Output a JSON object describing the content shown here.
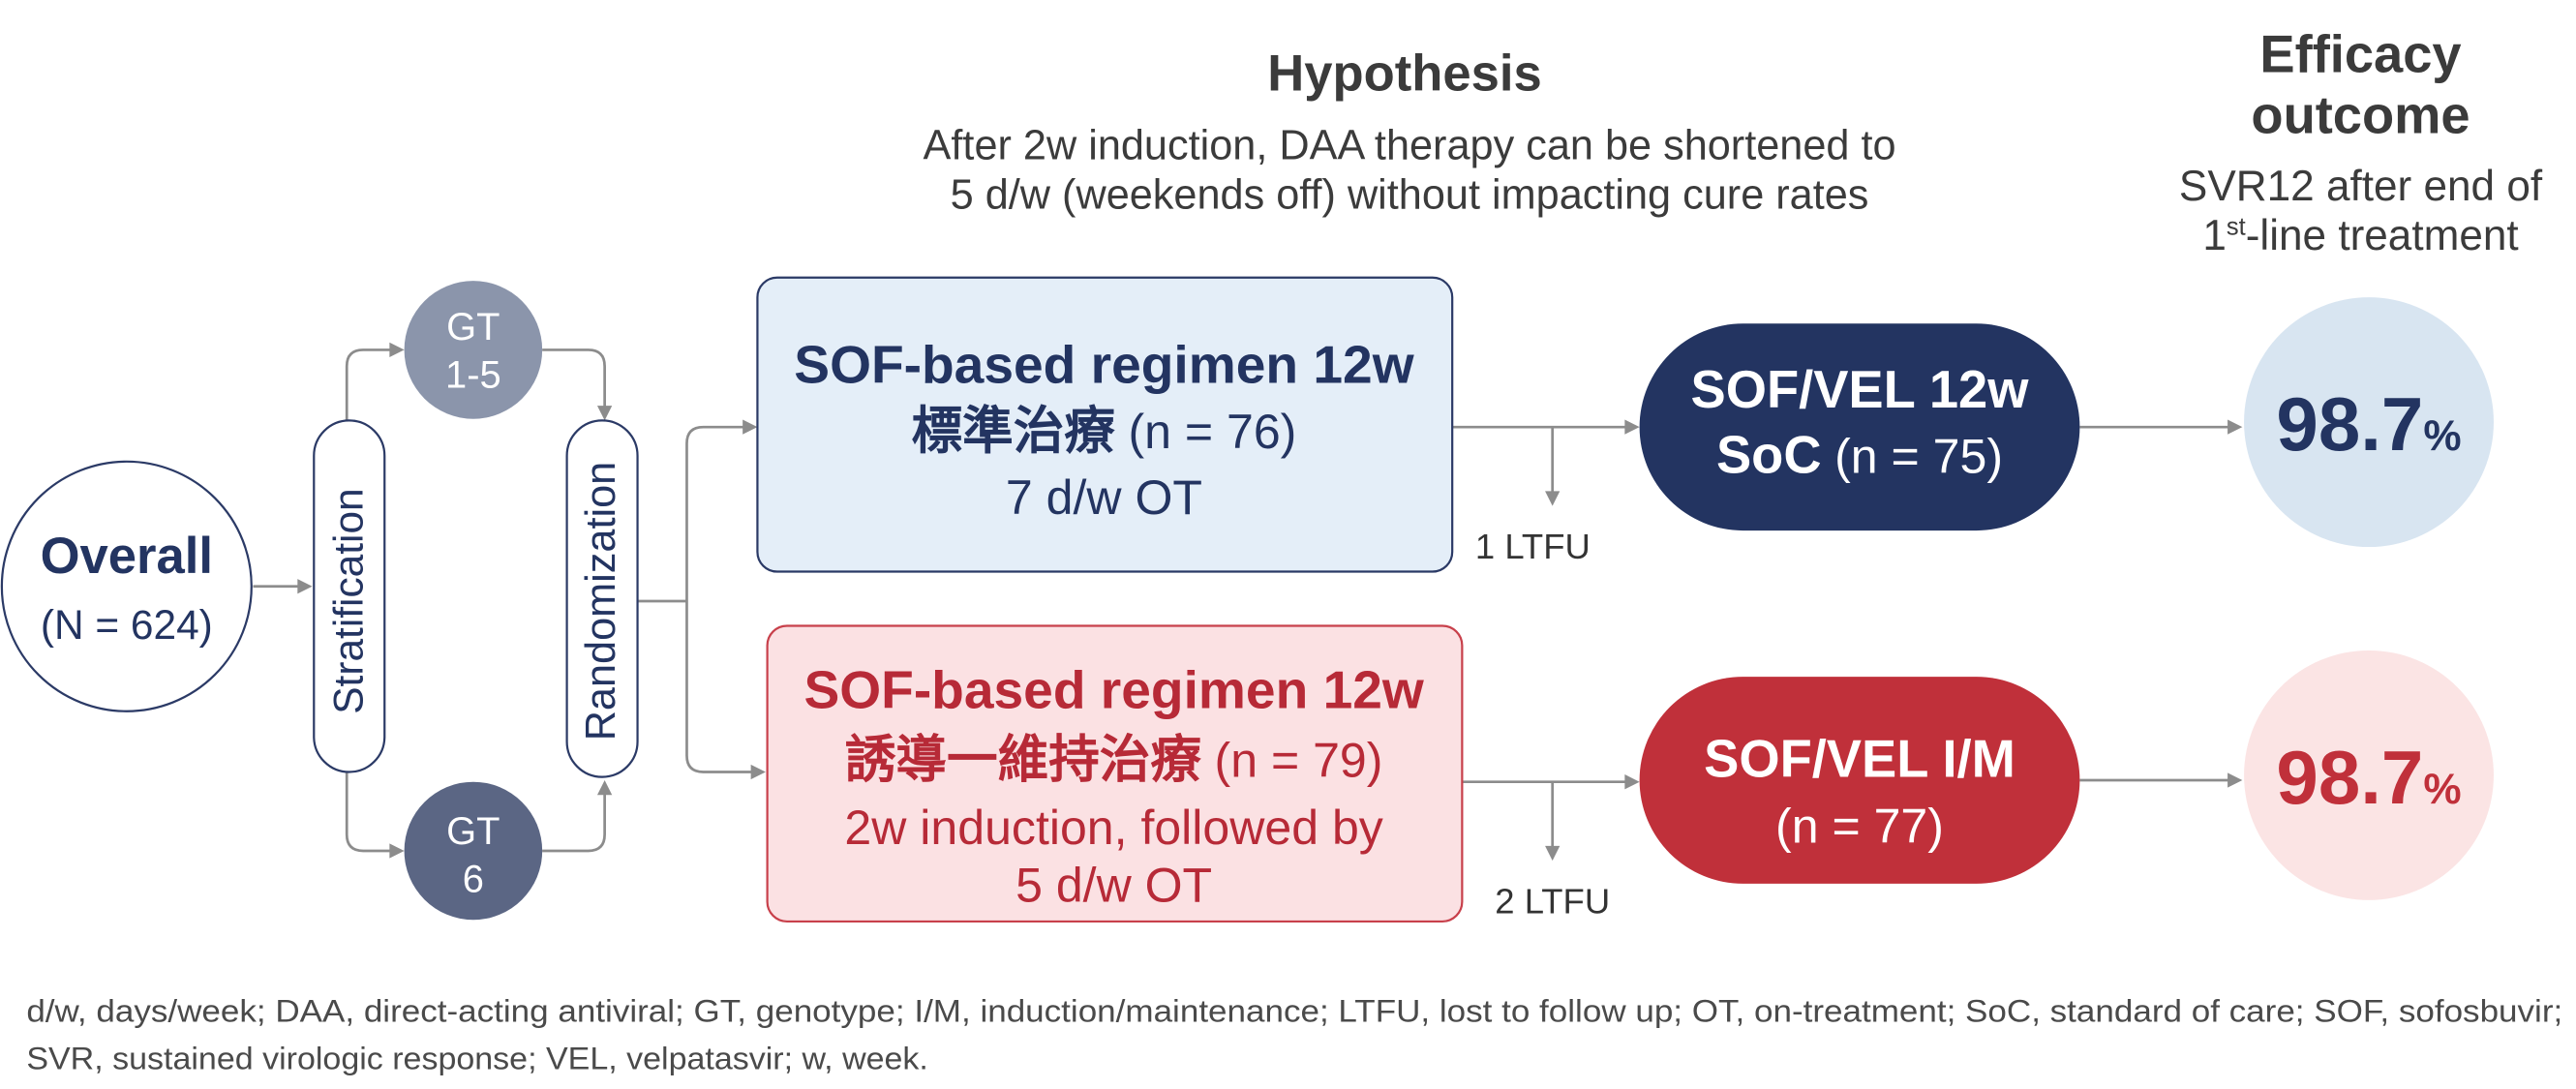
{
  "hypothesis": {
    "title": "Hypothesis",
    "lines": [
      "After 2w induction, DAA therapy can be shortened to",
      "5 d/w (weekends off) without impacting cure rates"
    ]
  },
  "efficacy_outcome": {
    "title": [
      "Efficacy",
      "outcome"
    ],
    "description_line1": "SVR12 after end of",
    "description_line2": {
      "ordinal": "1",
      "superscript": "st",
      "rest": "-line treatment"
    }
  },
  "overall": {
    "label": "Overall",
    "count": "(N = 624)"
  },
  "stratification": {
    "label": "Stratification"
  },
  "randomization": {
    "label": "Randomization"
  },
  "genotype_groups": [
    {
      "line1": "GT",
      "line2": "1-5",
      "color": "#8b95ab"
    },
    {
      "line1": "GT",
      "line2": "6",
      "color": "#5b6684"
    }
  ],
  "arms": [
    {
      "regimen": "SOF-based regimen 12w",
      "name_zh": "標準治療",
      "count": "(n = 76)",
      "schedule": [
        "7 d/w OT"
      ],
      "box_fill": "#e4eef8",
      "box_border": "#2b3a66",
      "lost_to_follow_up": "1 LTFU",
      "treatment": {
        "line1": "SOF/VEL 12w",
        "line2_bold": "SoC",
        "line2": "(n = 75)",
        "color": "#233461"
      },
      "outcome": {
        "value": "98.7",
        "unit": "%",
        "fill": "#d8e5f1"
      }
    },
    {
      "regimen": "SOF-based regimen 12w",
      "name_zh": "誘導一維持治療",
      "count": "(n = 79)",
      "schedule": [
        "2w induction, followed by",
        "5 d/w OT"
      ],
      "box_fill": "#fbe1e3",
      "box_border": "#c8404b",
      "lost_to_follow_up": "2 LTFU",
      "treatment": {
        "line1": "SOF/VEL I/M",
        "line2": "(n = 77)",
        "color": "#c0303a"
      },
      "outcome": {
        "value": "98.7",
        "unit": "%",
        "fill": "#fbe4e4"
      }
    }
  ],
  "footnote": [
    "d/w, days/week; DAA, direct-acting antiviral; GT, genotype; I/M, induction/maintenance; LTFU, lost to follow up; OT, on-treatment; SoC, standard of care; SOF, sofosbuvir;",
    "SVR, sustained virologic response; VEL, velpatasvir; w, week."
  ]
}
